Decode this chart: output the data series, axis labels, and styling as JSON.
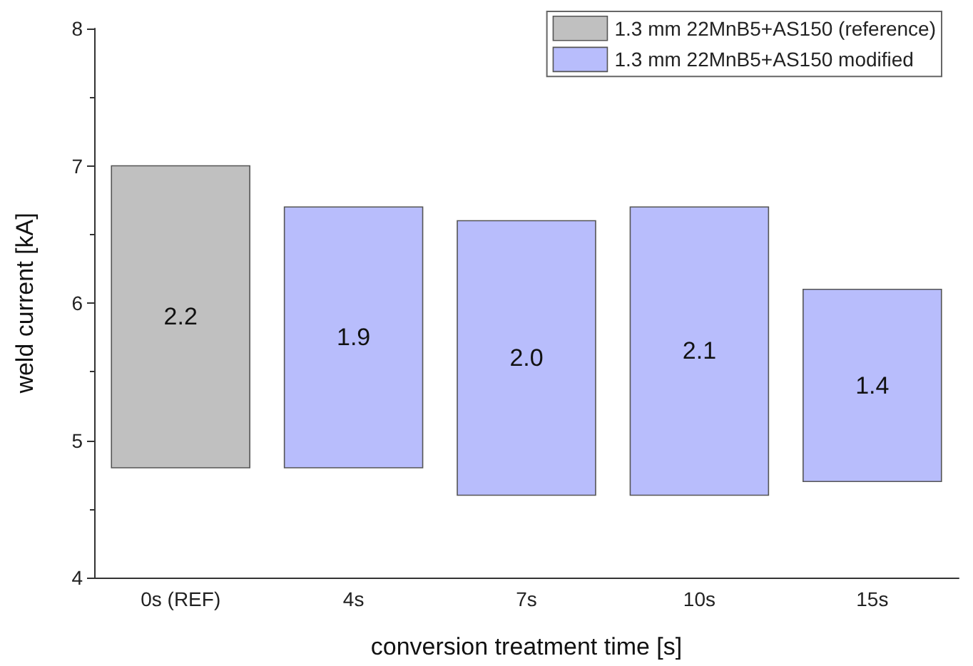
{
  "chart_data": {
    "type": "bar",
    "xlabel": "conversion treatment time [s]",
    "ylabel": "weld current [kA]",
    "categories": [
      "0s (REF)",
      "4s",
      "7s",
      "10s",
      "15s"
    ],
    "series": [
      {
        "name": "1.3 mm 22MnB5+AS150 (reference)",
        "color": "#c0c0c0",
        "values": [
          2.2,
          null,
          null,
          null,
          null
        ],
        "base": [
          4.8,
          null,
          null,
          null,
          null
        ],
        "value_labels": [
          "2.2",
          null,
          null,
          null,
          null
        ]
      },
      {
        "name": "1.3 mm 22MnB5+AS150 modified",
        "color": "#b8bdfc",
        "values": [
          null,
          1.9,
          2.0,
          2.1,
          1.4
        ],
        "base": [
          null,
          4.8,
          4.6,
          4.6,
          4.7
        ],
        "value_labels": [
          null,
          "1.9",
          "2.0",
          "2.1",
          "1.4"
        ]
      }
    ],
    "ylim": [
      4,
      8
    ],
    "yticks": [
      4,
      5,
      6,
      7,
      8
    ],
    "grid": false,
    "legend": "top right"
  }
}
